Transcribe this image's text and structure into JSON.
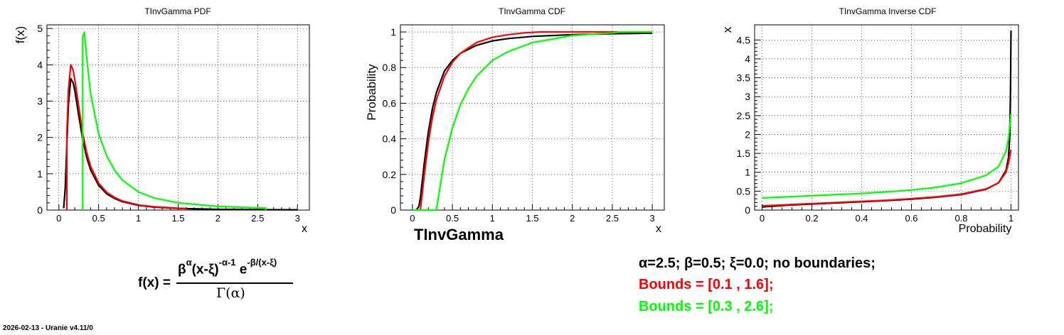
{
  "chart_data": [
    {
      "type": "line",
      "title": "TInvGamma PDF",
      "xlabel": "x",
      "ylabel": "f(x)",
      "xlim": [
        -0.15,
        3.15
      ],
      "ylim": [
        0,
        5.1
      ],
      "xticks": [
        0,
        0.5,
        1,
        1.5,
        2,
        2.5,
        3
      ],
      "xtick_labels": [
        "0",
        "0.5",
        "1",
        "1.5",
        "2",
        "2.5",
        "3"
      ],
      "yticks": [
        0,
        1,
        2,
        3,
        4,
        5
      ],
      "ytick_labels": [
        "0",
        "1",
        "2",
        "3",
        "4",
        "5"
      ],
      "grid": true,
      "series": [
        {
          "color": "#000000",
          "x": [
            0.06,
            0.08,
            0.1,
            0.12,
            0.15,
            0.18,
            0.2,
            0.25,
            0.3,
            0.35,
            0.4,
            0.5,
            0.6,
            0.7,
            0.8,
            1.0,
            1.2,
            1.5,
            2.0,
            2.5,
            3.0
          ],
          "y": [
            0.05,
            0.6,
            1.8,
            2.9,
            3.62,
            3.5,
            3.3,
            2.6,
            1.95,
            1.45,
            1.1,
            0.68,
            0.45,
            0.32,
            0.23,
            0.13,
            0.08,
            0.045,
            0.02,
            0.012,
            0.007
          ]
        },
        {
          "color": "#ff0000",
          "x": [
            0.1,
            0.1,
            0.12,
            0.15,
            0.18,
            0.2,
            0.25,
            0.3,
            0.35,
            0.4,
            0.5,
            0.6,
            0.7,
            0.8,
            1.0,
            1.2,
            1.5,
            1.6,
            1.6
          ],
          "y": [
            0,
            2.1,
            3.3,
            4.0,
            3.85,
            3.6,
            2.85,
            2.12,
            1.58,
            1.2,
            0.74,
            0.49,
            0.35,
            0.25,
            0.14,
            0.09,
            0.05,
            0.04,
            0
          ]
        },
        {
          "color": "#00ff00",
          "x": [
            0.3,
            0.3,
            0.32,
            0.35,
            0.4,
            0.5,
            0.6,
            0.7,
            0.8,
            1.0,
            1.2,
            1.5,
            2.0,
            2.5,
            2.6,
            2.6
          ],
          "y": [
            0,
            4.75,
            4.9,
            4.2,
            3.2,
            2.1,
            1.5,
            1.1,
            0.82,
            0.5,
            0.33,
            0.2,
            0.1,
            0.06,
            0.05,
            0
          ]
        }
      ]
    },
    {
      "type": "line",
      "title": "TInvGamma CDF",
      "xlabel": "x",
      "ylabel": "Probability",
      "xlim": [
        -0.15,
        3.15
      ],
      "ylim": [
        0,
        1.04
      ],
      "xticks": [
        0,
        0.5,
        1,
        1.5,
        2,
        2.5,
        3
      ],
      "xtick_labels": [
        "0",
        "0.5",
        "1",
        "1.5",
        "2",
        "2.5",
        "3"
      ],
      "yticks": [
        0,
        0.2,
        0.4,
        0.6,
        0.8,
        1
      ],
      "ytick_labels": [
        "0",
        "0.2",
        "0.4",
        "0.6",
        "0.8",
        "1"
      ],
      "grid": true,
      "series": [
        {
          "color": "#000000",
          "x": [
            0.05,
            0.08,
            0.1,
            0.15,
            0.2,
            0.25,
            0.3,
            0.4,
            0.5,
            0.6,
            0.8,
            1.0,
            1.2,
            1.5,
            2.0,
            2.5,
            3.0
          ],
          "y": [
            0,
            0.02,
            0.07,
            0.27,
            0.44,
            0.57,
            0.66,
            0.78,
            0.84,
            0.88,
            0.925,
            0.95,
            0.963,
            0.975,
            0.985,
            0.99,
            0.993
          ]
        },
        {
          "color": "#ff0000",
          "x": [
            0.1,
            0.15,
            0.2,
            0.25,
            0.3,
            0.4,
            0.5,
            0.6,
            0.8,
            1.0,
            1.2,
            1.4,
            1.6,
            2.0,
            2.5,
            3.0
          ],
          "y": [
            0,
            0.2,
            0.38,
            0.52,
            0.62,
            0.75,
            0.83,
            0.88,
            0.94,
            0.97,
            0.985,
            0.995,
            1.0,
            1.0,
            1.0,
            1.0
          ]
        },
        {
          "color": "#00ff00",
          "x": [
            0.0,
            0.3,
            0.35,
            0.4,
            0.5,
            0.6,
            0.7,
            0.8,
            1.0,
            1.2,
            1.5,
            2.0,
            2.5,
            2.6,
            3.0
          ],
          "y": [
            0,
            0,
            0.14,
            0.28,
            0.46,
            0.59,
            0.68,
            0.75,
            0.84,
            0.89,
            0.94,
            0.98,
            0.995,
            1.0,
            1.0
          ]
        }
      ]
    },
    {
      "type": "line",
      "title": "TInvGamma Inverse CDF",
      "xlabel": "Probability",
      "ylabel": "x",
      "xlim": [
        -0.03,
        1.03
      ],
      "ylim": [
        0,
        4.9
      ],
      "xticks": [
        0,
        0.2,
        0.4,
        0.6,
        0.8,
        1
      ],
      "xtick_labels": [
        "0",
        "0.2",
        "0.4",
        "0.6",
        "0.8",
        "1"
      ],
      "yticks": [
        0,
        0.5,
        1,
        1.5,
        2,
        2.5,
        3,
        3.5,
        4,
        4.5
      ],
      "ytick_labels": [
        "0",
        "0.5",
        "1",
        "1.5",
        "2",
        "2.5",
        "3",
        "3.5",
        "4",
        "4.5"
      ],
      "grid": true,
      "series": [
        {
          "color": "#000000",
          "x": [
            0,
            0.1,
            0.2,
            0.3,
            0.4,
            0.5,
            0.6,
            0.7,
            0.8,
            0.9,
            0.95,
            0.98,
            0.99,
            0.995,
            0.998,
            1.0
          ],
          "y": [
            0.08,
            0.13,
            0.16,
            0.19,
            0.22,
            0.25,
            0.29,
            0.34,
            0.41,
            0.55,
            0.72,
            1.05,
            1.4,
            2.0,
            3.2,
            4.75
          ]
        },
        {
          "color": "#ff0000",
          "x": [
            0,
            0.1,
            0.2,
            0.3,
            0.4,
            0.5,
            0.6,
            0.7,
            0.8,
            0.9,
            0.95,
            0.98,
            0.99,
            1.0
          ],
          "y": [
            0.11,
            0.14,
            0.17,
            0.2,
            0.23,
            0.26,
            0.3,
            0.35,
            0.42,
            0.56,
            0.72,
            1.0,
            1.25,
            1.6
          ]
        },
        {
          "color": "#00ff00",
          "x": [
            0,
            0.1,
            0.2,
            0.3,
            0.4,
            0.5,
            0.6,
            0.7,
            0.8,
            0.9,
            0.95,
            0.98,
            0.99,
            1.0
          ],
          "y": [
            0.32,
            0.35,
            0.38,
            0.41,
            0.44,
            0.48,
            0.53,
            0.6,
            0.71,
            0.92,
            1.15,
            1.55,
            1.9,
            2.55
          ]
        }
      ]
    }
  ],
  "center_label": "TInvGamma",
  "formula": {
    "lhs": "f(x) =",
    "num_base": "β",
    "num_base_exp": "α",
    "num_term": "(x-ξ)",
    "num_term_exp": "-α-1",
    "num_e": " e",
    "num_e_exp": "-β/(x-ξ)",
    "den": "Γ(α)"
  },
  "params": {
    "line1": "α=2.5;  β=0.5;  ξ=0.0;   no boundaries;",
    "line2": "Bounds = [0.1 , 1.6];",
    "line3": "Bounds = [0.3 , 2.6];",
    "color1": "#000000",
    "color2": "#ff0000",
    "color3": "#00ff00"
  },
  "footer": "2026-02-13 - Uranie v4.11/0"
}
